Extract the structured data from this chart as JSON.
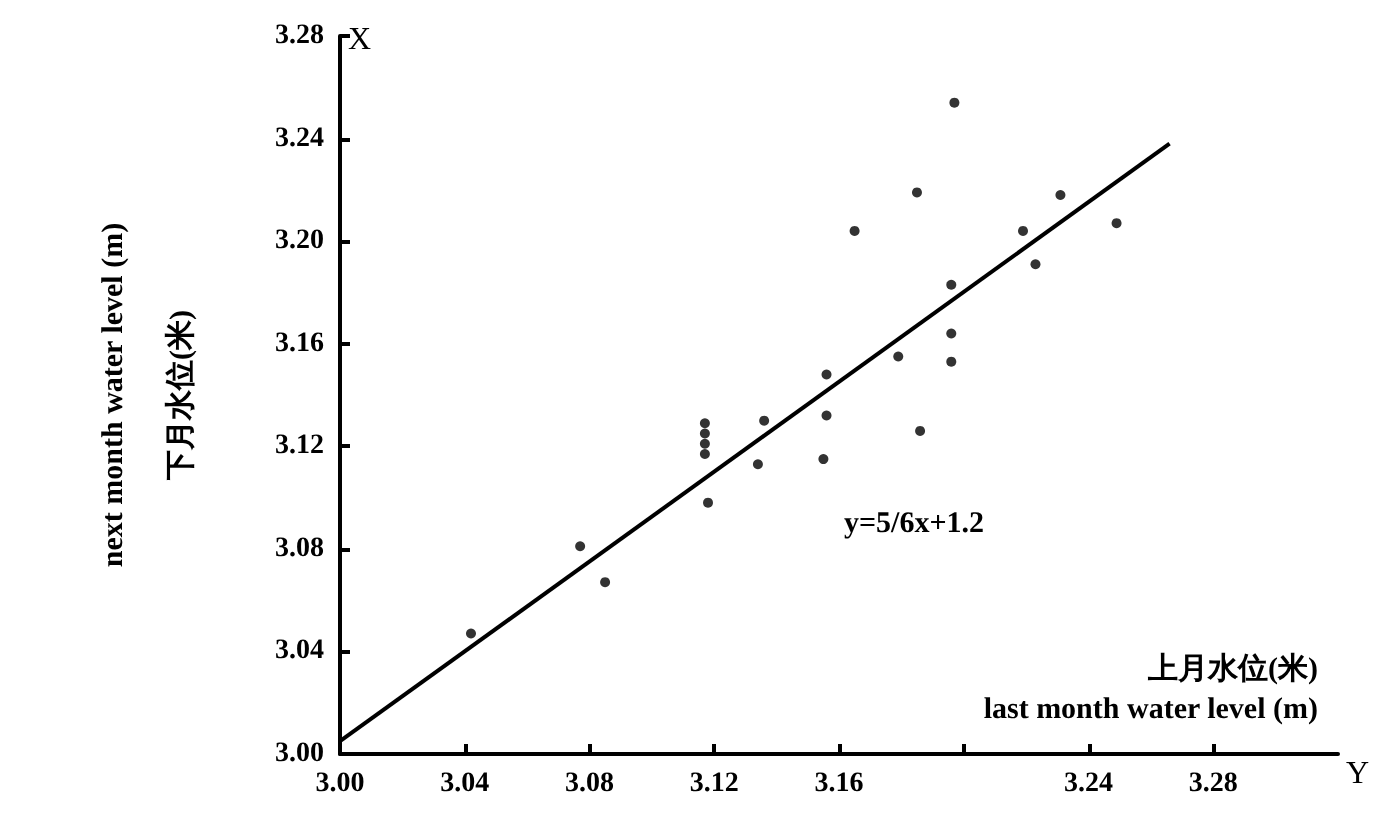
{
  "chart_data": {
    "type": "scatter",
    "xlabel": "上月水位(米)\nlast month water level (m)",
    "ylabel": "next month water level (m)\n下月水位(米)",
    "annotations": [
      "X",
      "Y",
      "y=5/6x+1.2"
    ],
    "xlim": [
      3.0,
      3.32
    ],
    "ylim": [
      3.0,
      3.28
    ],
    "xticks": [
      {
        "value": 3.0,
        "label": "3.00"
      },
      {
        "value": 3.04,
        "label": "3.04"
      },
      {
        "value": 3.08,
        "label": "3.08"
      },
      {
        "value": 3.12,
        "label": "3.12"
      },
      {
        "value": 3.16,
        "label": "3.16"
      },
      {
        "value": 3.2,
        "label": null
      },
      {
        "value": 3.24,
        "label": "3.24"
      },
      {
        "value": 3.28,
        "label": "3.28"
      }
    ],
    "yticks": [
      {
        "value": 3.0,
        "label": "3.00"
      },
      {
        "value": 3.04,
        "label": "3.04"
      },
      {
        "value": 3.08,
        "label": "3.08"
      },
      {
        "value": 3.12,
        "label": "3.12"
      },
      {
        "value": 3.16,
        "label": "3.16"
      },
      {
        "value": 3.2,
        "label": "3.20"
      },
      {
        "value": 3.24,
        "label": "3.24"
      },
      {
        "value": 3.28,
        "label": "3.28"
      }
    ],
    "grid": false,
    "marker": "circle",
    "series": [
      {
        "color": "#000000",
        "x": [
          3.042,
          3.077,
          3.085,
          3.118,
          3.117,
          3.117,
          3.117,
          3.117,
          3.134,
          3.136,
          3.156,
          3.156,
          3.155,
          3.165,
          3.179,
          3.186,
          3.196,
          3.196,
          3.196,
          3.197,
          3.185,
          3.219,
          3.231,
          3.223,
          3.249
        ],
        "values": [
          3.047,
          3.081,
          3.067,
          3.098,
          3.129,
          3.125,
          3.121,
          3.117,
          3.113,
          3.13,
          3.148,
          3.132,
          3.115,
          3.204,
          3.155,
          3.126,
          3.183,
          3.164,
          3.153,
          3.254,
          3.219,
          3.204,
          3.218,
          3.191,
          3.207
        ]
      },
      {
        "type": "line",
        "color": "#000000",
        "line_style": "solid",
        "marker": "none",
        "x": [
          3.0,
          3.266
        ],
        "values": [
          3.005,
          3.238
        ]
      }
    ]
  }
}
